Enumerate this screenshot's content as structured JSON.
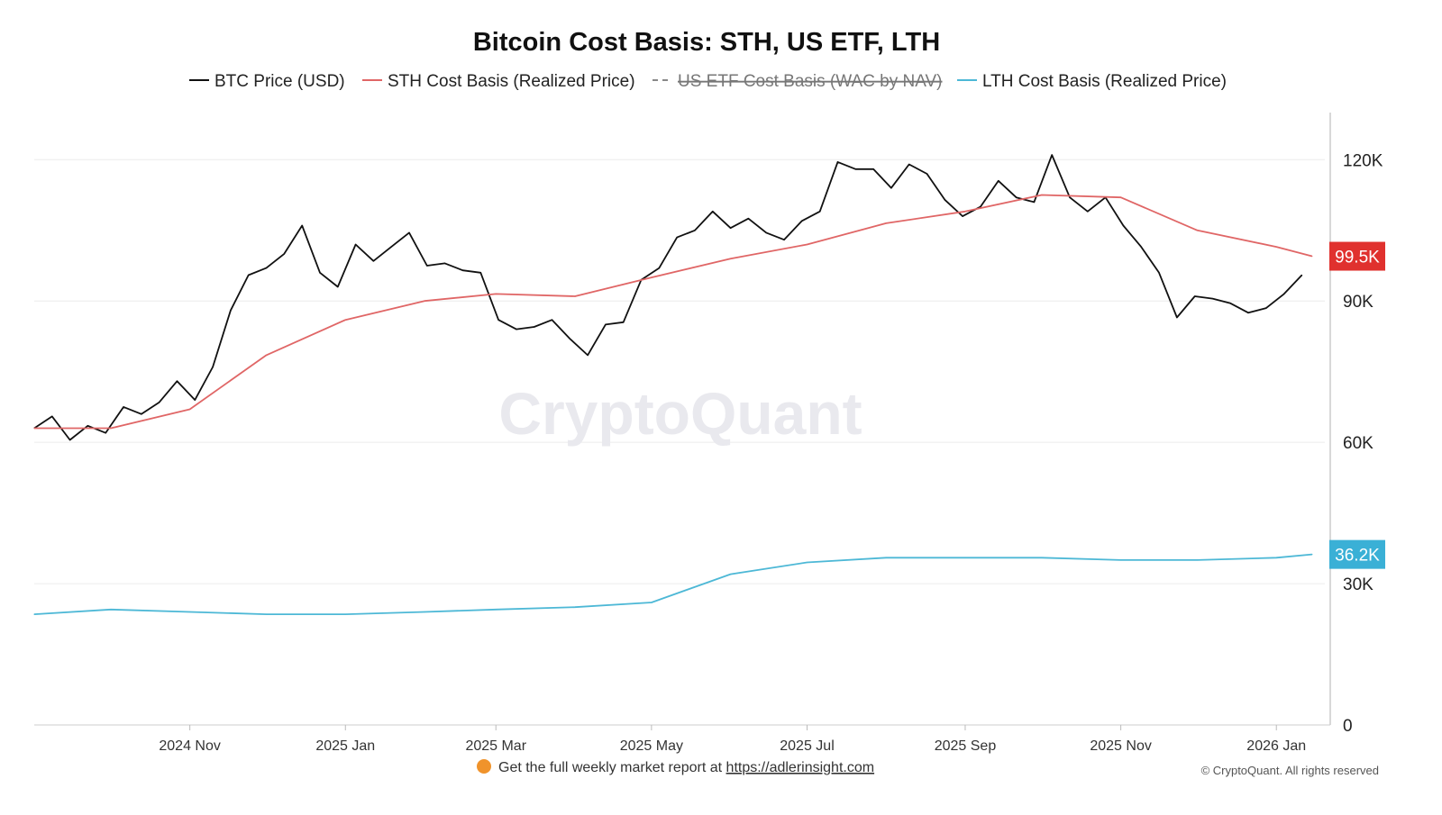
{
  "chart_data": {
    "type": "line",
    "title": "Bitcoin Cost Basis: STH, US ETF, LTH",
    "xlabel": "",
    "ylabel": "",
    "x_ticks": [
      "2024 Nov",
      "2025 Jan",
      "2025 Mar",
      "2025 May",
      "2025 Jul",
      "2025 Sep",
      "2025 Nov",
      "2026 Jan"
    ],
    "y_ticks": [
      "0",
      "30K",
      "60K",
      "90K",
      "120K"
    ],
    "ylim": [
      0,
      130000
    ],
    "grid": true,
    "legend_position": "top-center",
    "series": [
      {
        "name": "BTC Price (USD)",
        "color": "#111111",
        "style": "solid",
        "hidden": false,
        "x": [
          "2024-09-01",
          "2024-09-08",
          "2024-09-15",
          "2024-09-22",
          "2024-09-29",
          "2024-10-06",
          "2024-10-13",
          "2024-10-20",
          "2024-10-27",
          "2024-11-03",
          "2024-11-10",
          "2024-11-17",
          "2024-11-24",
          "2024-12-01",
          "2024-12-08",
          "2024-12-15",
          "2024-12-22",
          "2024-12-29",
          "2025-01-05",
          "2025-01-12",
          "2025-01-19",
          "2025-01-26",
          "2025-02-02",
          "2025-02-09",
          "2025-02-16",
          "2025-02-23",
          "2025-03-02",
          "2025-03-09",
          "2025-03-16",
          "2025-03-23",
          "2025-03-30",
          "2025-04-06",
          "2025-04-13",
          "2025-04-20",
          "2025-04-27",
          "2025-05-04",
          "2025-05-11",
          "2025-05-18",
          "2025-05-25",
          "2025-06-01",
          "2025-06-08",
          "2025-06-15",
          "2025-06-22",
          "2025-06-29",
          "2025-07-06",
          "2025-07-13",
          "2025-07-20",
          "2025-07-27",
          "2025-08-03",
          "2025-08-10",
          "2025-08-17",
          "2025-08-24",
          "2025-08-31",
          "2025-09-07",
          "2025-09-14",
          "2025-09-21",
          "2025-09-28",
          "2025-10-05",
          "2025-10-12",
          "2025-10-19",
          "2025-10-26",
          "2025-11-02",
          "2025-11-09",
          "2025-11-16",
          "2025-11-23",
          "2025-11-30",
          "2025-12-07",
          "2025-12-14",
          "2025-12-21",
          "2025-12-28",
          "2026-01-04",
          "2026-01-11"
        ],
        "values": [
          63000,
          65500,
          60500,
          63500,
          62000,
          67500,
          66000,
          68500,
          73000,
          69000,
          76000,
          88000,
          95500,
          97000,
          100000,
          106000,
          96000,
          93000,
          102000,
          98500,
          101500,
          104500,
          97500,
          98000,
          96500,
          96000,
          86000,
          84000,
          84500,
          86000,
          82000,
          78500,
          85000,
          85500,
          94500,
          97000,
          103500,
          105000,
          109000,
          105500,
          107500,
          104500,
          103000,
          107000,
          109000,
          119500,
          118000,
          118000,
          114000,
          119000,
          117000,
          111500,
          108000,
          110000,
          115500,
          112000,
          111000,
          121000,
          112000,
          109000,
          112000,
          106000,
          101500,
          96000,
          86500,
          91000,
          90500,
          89500,
          87500,
          88500,
          91500,
          95500
        ]
      },
      {
        "name": "STH Cost Basis (Realized Price)",
        "color": "#e06666",
        "style": "solid",
        "hidden": false,
        "x": [
          "2024-09-01",
          "2024-10-01",
          "2024-11-01",
          "2024-12-01",
          "2025-01-01",
          "2025-02-01",
          "2025-03-01",
          "2025-04-01",
          "2025-05-01",
          "2025-06-01",
          "2025-07-01",
          "2025-08-01",
          "2025-09-01",
          "2025-10-01",
          "2025-11-01",
          "2025-12-01",
          "2026-01-01",
          "2026-01-15"
        ],
        "values": [
          63000,
          63000,
          67000,
          78500,
          86000,
          90000,
          91500,
          91000,
          95000,
          99000,
          102000,
          106500,
          109000,
          112500,
          112000,
          105000,
          101500,
          99500
        ]
      },
      {
        "name": "US ETF Cost Basis (WAC by NAV)",
        "color": "#888888",
        "style": "dashed",
        "hidden": true,
        "x": [],
        "values": []
      },
      {
        "name": "LTH Cost Basis (Realized Price)",
        "color": "#4db8d6",
        "style": "solid",
        "hidden": false,
        "x": [
          "2024-09-01",
          "2024-10-01",
          "2024-11-01",
          "2024-12-01",
          "2025-01-01",
          "2025-02-01",
          "2025-03-01",
          "2025-04-01",
          "2025-05-01",
          "2025-06-01",
          "2025-07-01",
          "2025-08-01",
          "2025-09-01",
          "2025-10-01",
          "2025-11-01",
          "2025-12-01",
          "2026-01-01",
          "2026-01-15"
        ],
        "values": [
          23500,
          24500,
          24000,
          23500,
          23500,
          24000,
          24500,
          25000,
          26000,
          32000,
          34500,
          35500,
          35500,
          35500,
          35000,
          35000,
          35500,
          36200
        ]
      }
    ],
    "annotations": [
      {
        "label": "99.5K",
        "series": "STH Cost Basis (Realized Price)",
        "value": 99500,
        "color": "#e0312e"
      },
      {
        "label": "36.2K",
        "series": "LTH Cost Basis (Realized Price)",
        "value": 36200,
        "color": "#3ab0d6"
      }
    ]
  },
  "watermark": "CryptoQuant",
  "footer": {
    "icon": "orange-circle-icon",
    "text_prefix": "Get the full weekly market report at",
    "link": "https://adlerinsight.com",
    "copyright": "© CryptoQuant. All rights reserved"
  }
}
